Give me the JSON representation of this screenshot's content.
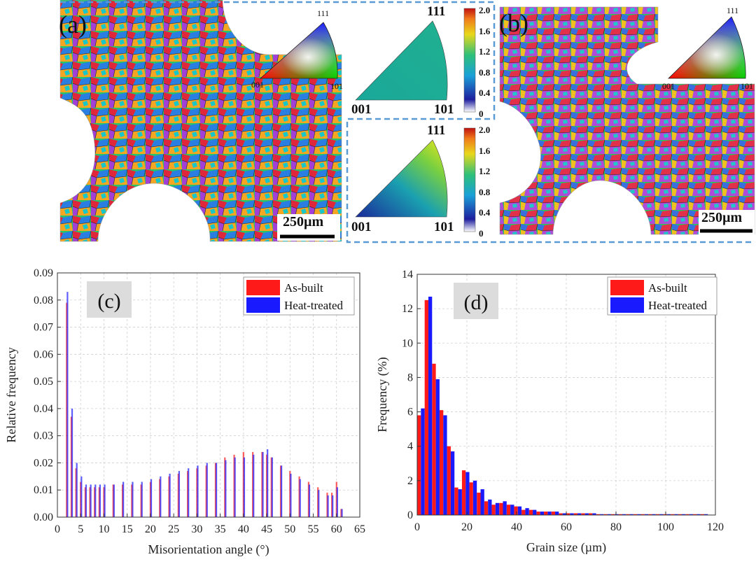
{
  "panels": {
    "a": {
      "label": "(a)",
      "scalebar": "250µm",
      "ipf_key": {
        "corner_top": "111",
        "corner_left": "001",
        "corner_right": "101"
      }
    },
    "b": {
      "label": "(b)",
      "scalebar": "250µm",
      "ipf_key": {
        "corner_top": "111",
        "corner_left": "001",
        "corner_right": "101"
      }
    }
  },
  "pole_figures": [
    {
      "corner_top": "111",
      "corner_left": "001",
      "corner_right": "101",
      "colorbar_ticks": [
        "2.0",
        "1.6",
        "1.2",
        "0.8",
        "0.4",
        "0"
      ],
      "colorbar_range": [
        0,
        2.0
      ]
    },
    {
      "corner_top": "111",
      "corner_left": "001",
      "corner_right": "101",
      "colorbar_ticks": [
        "2.0",
        "1.6",
        "1.2",
        "0.8",
        "0.4",
        "0"
      ],
      "colorbar_range": [
        0,
        2.0
      ]
    }
  ],
  "colors": {
    "as_built": "#ff1a1a",
    "heat_treated": "#1a1aff",
    "overlap": "#8a1a8a",
    "dash_border": "#5b9bd5"
  },
  "chart_data": [
    {
      "type": "bar",
      "panel_label": "(c)",
      "xlabel": "Misorientation angle (°)",
      "ylabel": "Relative frequency",
      "xlim": [
        0,
        65
      ],
      "ylim": [
        0,
        0.09
      ],
      "xticks": [
        0,
        5,
        10,
        15,
        20,
        25,
        30,
        35,
        40,
        45,
        50,
        55,
        60,
        65
      ],
      "yticks": [
        "0.00",
        "0.01",
        "0.02",
        "0.03",
        "0.04",
        "0.05",
        "0.06",
        "0.07",
        "0.08",
        "0.09"
      ],
      "grid": true,
      "legend_position": "top-right",
      "x": [
        2,
        3,
        4,
        5,
        6,
        7,
        8,
        9,
        10,
        12,
        14,
        16,
        18,
        20,
        22,
        24,
        26,
        28,
        30,
        32,
        34,
        36,
        38,
        40,
        42,
        44,
        45,
        46,
        48,
        50,
        52,
        54,
        56,
        58,
        59,
        60,
        61
      ],
      "series": [
        {
          "name": "As-built",
          "values": [
            0.079,
            0.037,
            0.018,
            0.013,
            0.011,
            0.011,
            0.011,
            0.011,
            0.011,
            0.012,
            0.012,
            0.012,
            0.012,
            0.013,
            0.014,
            0.015,
            0.016,
            0.017,
            0.018,
            0.019,
            0.02,
            0.022,
            0.023,
            0.024,
            0.024,
            0.024,
            0.023,
            0.022,
            0.019,
            0.017,
            0.015,
            0.013,
            0.011,
            0.009,
            0.009,
            0.013,
            0.003
          ]
        },
        {
          "name": "Heat-treated",
          "values": [
            0.083,
            0.04,
            0.02,
            0.015,
            0.012,
            0.012,
            0.012,
            0.012,
            0.012,
            0.012,
            0.013,
            0.013,
            0.013,
            0.014,
            0.015,
            0.016,
            0.017,
            0.018,
            0.019,
            0.02,
            0.02,
            0.021,
            0.022,
            0.022,
            0.023,
            0.024,
            0.025,
            0.022,
            0.019,
            0.016,
            0.014,
            0.012,
            0.01,
            0.008,
            0.008,
            0.011,
            0.003
          ]
        }
      ]
    },
    {
      "type": "bar",
      "panel_label": "(d)",
      "xlabel": "Grain size (µm)",
      "ylabel": "Frequency (%)",
      "xlim": [
        0,
        120
      ],
      "ylim": [
        0,
        14
      ],
      "xticks": [
        0,
        20,
        40,
        60,
        80,
        100,
        120
      ],
      "yticks": [
        0,
        2,
        4,
        6,
        8,
        10,
        12,
        14
      ],
      "grid": true,
      "legend_position": "top-right",
      "x": [
        1.5,
        4.5,
        7.5,
        10.5,
        13.5,
        16.5,
        19.5,
        22.5,
        25.5,
        28.5,
        31.5,
        34.5,
        37.5,
        40.5,
        43.5,
        46.5,
        49.5,
        52.5,
        55.5,
        58.5,
        61.5,
        64.5,
        67.5,
        70.5,
        73.5,
        76.5,
        79.5,
        82.5,
        85.5,
        88.5,
        91.5,
        94.5,
        97.5,
        100.5,
        103.5,
        106.5,
        109.5,
        112.5,
        115.5
      ],
      "series": [
        {
          "name": "As-built",
          "values": [
            5.8,
            12.5,
            8.8,
            6.1,
            4.0,
            1.6,
            2.6,
            1.9,
            1.3,
            0.8,
            0.6,
            0.7,
            0.6,
            0.5,
            0.3,
            0.3,
            0.2,
            0.2,
            0.2,
            0.1,
            0.1,
            0.1,
            0.1,
            0.1,
            0.05,
            0.05,
            0.05,
            0.05,
            0.05,
            0.05,
            0.05,
            0.05,
            0.05,
            0.05,
            0.05,
            0.05,
            0.05,
            0.05,
            0.05
          ]
        },
        {
          "name": "Heat-treated",
          "values": [
            6.2,
            12.7,
            7.9,
            5.8,
            3.7,
            1.5,
            2.5,
            2.0,
            1.5,
            0.9,
            0.7,
            0.8,
            0.6,
            0.5,
            0.4,
            0.3,
            0.2,
            0.2,
            0.2,
            0.1,
            0.1,
            0.1,
            0.1,
            0.1,
            0.05,
            0.05,
            0.05,
            0.05,
            0.05,
            0.05,
            0.05,
            0.05,
            0.05,
            0.05,
            0.05,
            0.05,
            0.05,
            0.05,
            0.05
          ]
        }
      ]
    }
  ]
}
